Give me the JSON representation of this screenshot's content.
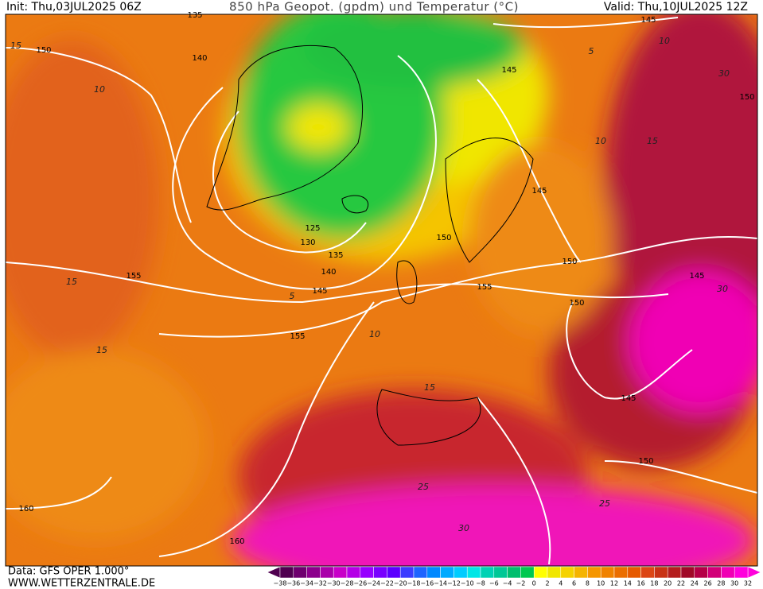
{
  "header": {
    "init": "Init: Thu,03JUL2025 06Z",
    "title": "850 hPa Geopot. (gpdm) und Temperatur (°C)",
    "valid": "Valid: Thu,10JUL2025 12Z"
  },
  "map": {
    "geopotential_labels": [
      "150",
      "135",
      "140",
      "145",
      "145",
      "150",
      "145",
      "150",
      "125",
      "130",
      "135",
      "140",
      "145",
      "155",
      "155",
      "150",
      "150",
      "145",
      "155",
      "145",
      "150",
      "160",
      "160"
    ],
    "temperature_labels": [
      "15",
      "10",
      "10",
      "5",
      "30",
      "10",
      "15",
      "15",
      "15",
      "10",
      "5",
      "15",
      "25",
      "30",
      "25",
      "30"
    ]
  },
  "footer": {
    "data": "Data: GFS OPER 1.000°",
    "site": "WWW.WETTERZENTRALE.DE"
  },
  "colorbar": {
    "labels": [
      "−38",
      "−36",
      "−34",
      "−32",
      "−30",
      "−28",
      "−26",
      "−24",
      "−22",
      "−20",
      "−18",
      "−16",
      "−14",
      "−12",
      "−10",
      "−8",
      "−6",
      "−4",
      "−2",
      "0",
      "2",
      "4",
      "6",
      "8",
      "10",
      "12",
      "14",
      "16",
      "18",
      "20",
      "22",
      "24",
      "26",
      "28",
      "30",
      "32"
    ],
    "colors": [
      "#500050",
      "#6e006e",
      "#8c008c",
      "#aa00aa",
      "#c800c8",
      "#b400e6",
      "#9600ff",
      "#7800ff",
      "#5a00ff",
      "#3c3cff",
      "#1e64ff",
      "#0088ff",
      "#00aaff",
      "#00ccff",
      "#00e6e6",
      "#00d2b4",
      "#00c896",
      "#00be6e",
      "#00c850",
      "#ffff00",
      "#f0e600",
      "#f5d200",
      "#f5b400",
      "#f59600",
      "#f08200",
      "#eb6e00",
      "#e65a00",
      "#dc4614",
      "#c83214",
      "#b41e1e",
      "#a00a28",
      "#b40046",
      "#d20078",
      "#f000b4",
      "#ff00dc"
    ]
  }
}
